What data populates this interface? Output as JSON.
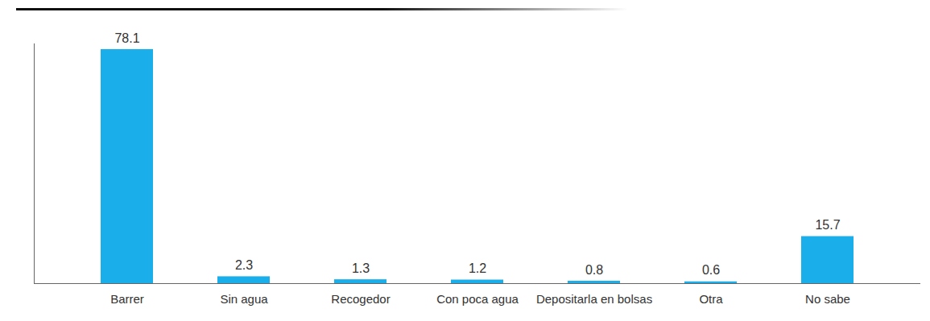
{
  "chart_data": {
    "type": "bar",
    "categories": [
      "Barrer",
      "Sin agua",
      "Recogedor",
      "Con poca agua",
      "Depositarla en bolsas",
      "Otra",
      "No sabe"
    ],
    "values": [
      78.1,
      2.3,
      1.3,
      1.2,
      0.8,
      0.6,
      15.7
    ],
    "color": "#1aaeea",
    "ylim": [
      0,
      80
    ],
    "yticks": [],
    "grid": false,
    "data_labels": true,
    "tick_labels": "x"
  }
}
